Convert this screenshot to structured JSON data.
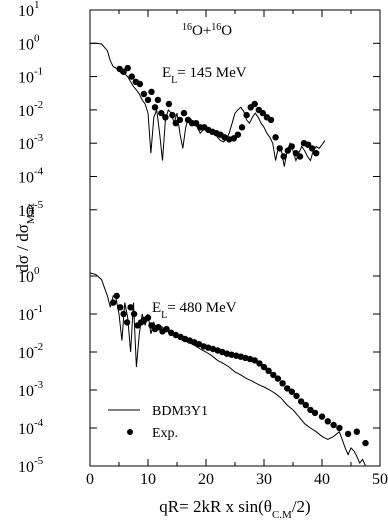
{
  "chart_data": {
    "type": "line",
    "xlabel": "qR= 2kR x sin(θ",
    "xlabel_sub": "C.M",
    "xlabel_end": "/2)",
    "ylabel_pre": "dσ / dσ",
    "ylabel_sub": "Matt",
    "x_axis": {
      "min": 0,
      "max": 50,
      "ticks": [
        0,
        10,
        20,
        30,
        40,
        50
      ]
    },
    "y_axis": {
      "scale": "log",
      "decades_min": -5,
      "decades_max": 1
    },
    "y_ticks_upper": [
      {
        "exp": 1,
        "base": "10",
        "sup": "1"
      },
      {
        "exp": 0,
        "base": "10",
        "sup": "0"
      },
      {
        "exp": -1,
        "base": "10",
        "sup": "-1"
      },
      {
        "exp": -2,
        "base": "10",
        "sup": "-2"
      },
      {
        "exp": -3,
        "base": "10",
        "sup": "-3"
      },
      {
        "exp": -4,
        "base": "10",
        "sup": "-4"
      },
      {
        "exp": -5,
        "base": "10",
        "sup": "-5"
      }
    ],
    "y_ticks_lower": [
      {
        "exp": 0,
        "base": "10",
        "sup": "0"
      },
      {
        "exp": -1,
        "base": "10",
        "sup": "-1"
      },
      {
        "exp": -2,
        "base": "10",
        "sup": "-2"
      },
      {
        "exp": -3,
        "base": "10",
        "sup": "-3"
      },
      {
        "exp": -4,
        "base": "10",
        "sup": "-4"
      },
      {
        "exp": -5,
        "base": "10",
        "sup": "-5"
      }
    ],
    "reaction": {
      "sup1": "16",
      "el1": "O+",
      "sup2": "16",
      "el2": "O"
    },
    "panel_upper_label": {
      "main": "E",
      "sub": "L",
      "rest": "= 145 MeV"
    },
    "panel_lower_label": {
      "main": "E",
      "sub": "L",
      "rest": "= 480 MeV"
    },
    "legend": {
      "position": "bottom-left",
      "line_label": "BDM3Y1",
      "dot_label": "Exp."
    },
    "panels": [
      {
        "name": "145 MeV",
        "theory_x": [
          0,
          1,
          2,
          3,
          3.5,
          4,
          4.5,
          5,
          5.5,
          6,
          6.5,
          7,
          7.5,
          8,
          8.5,
          9,
          9.5,
          10,
          10.5,
          11,
          11.5,
          12,
          12.5,
          13,
          13.5,
          14,
          14.5,
          15,
          15.5,
          16,
          16.5,
          17,
          17.5,
          18,
          18.5,
          19,
          19.5,
          20,
          20.5,
          21,
          21.5,
          22,
          22.5,
          23,
          23.5,
          24,
          24.5,
          25,
          25.5,
          26,
          26.5,
          27,
          27.5,
          28,
          28.5,
          29,
          29.5,
          30,
          30.5,
          31,
          31.5,
          32,
          32.5,
          33,
          33.5,
          34,
          34.5,
          35,
          35.5,
          36,
          36.5,
          37,
          37.5,
          38,
          38.5,
          39,
          39.5,
          40,
          40.5
        ],
        "theory_y": [
          1.0,
          1.0,
          0.95,
          0.6,
          0.3,
          0.2,
          0.18,
          0.15,
          0.12,
          0.12,
          0.1,
          0.07,
          0.05,
          0.04,
          0.03,
          0.02,
          0.015,
          0.008,
          0.0005,
          0.006,
          0.01,
          0.002,
          0.0003,
          0.005,
          0.01,
          0.008,
          0.004,
          0.008,
          0.002,
          0.0007,
          0.003,
          0.006,
          0.005,
          0.004,
          0.003,
          0.002,
          0.0025,
          0.003,
          0.0028,
          0.0025,
          0.002,
          0.0015,
          0.0012,
          0.0011,
          0.0013,
          0.002,
          0.004,
          0.008,
          0.01,
          0.012,
          0.009,
          0.005,
          0.004,
          0.006,
          0.008,
          0.006,
          0.004,
          0.003,
          0.002,
          0.0015,
          0.001,
          0.0003,
          0.0008,
          0.0006,
          0.0002,
          0.0006,
          0.001,
          0.0006,
          0.0003,
          0.0005,
          0.0008,
          0.0006,
          0.0004,
          0.0003,
          0.0006,
          0.0008,
          0.0007,
          0.0009,
          0.0012
        ],
        "exp_x": [
          5.1,
          5.8,
          6.5,
          7.2,
          7.9,
          8.6,
          9.3,
          10.0,
          10.6,
          11.2,
          11.7,
          12.3,
          13.0,
          13.6,
          14.2,
          14.8,
          15.5,
          16.2,
          16.9,
          17.6,
          18.3,
          19.0,
          19.7,
          20.4,
          21.1,
          21.8,
          22.5,
          23.2,
          24.0,
          24.8,
          25.5,
          26.2,
          27.0,
          27.7,
          28.4,
          29.1,
          29.8,
          30.5,
          31.2,
          32.0,
          32.7,
          33.4,
          34.1,
          34.8,
          35.5,
          36.2,
          36.9,
          37.6,
          38.3,
          39.0
        ],
        "exp_y": [
          0.17,
          0.14,
          0.18,
          0.1,
          0.07,
          0.06,
          0.03,
          0.02,
          0.035,
          0.012,
          0.02,
          0.008,
          0.006,
          0.015,
          0.007,
          0.004,
          0.005,
          0.008,
          0.005,
          0.004,
          0.004,
          0.003,
          0.003,
          0.0025,
          0.0022,
          0.002,
          0.0018,
          0.0015,
          0.0013,
          0.0014,
          0.0018,
          0.003,
          0.007,
          0.012,
          0.015,
          0.01,
          0.008,
          0.006,
          0.005,
          0.0015,
          0.0007,
          0.0004,
          0.0006,
          0.0008,
          0.0005,
          0.0004,
          0.001,
          0.0009,
          0.0007,
          0.0005
        ]
      },
      {
        "name": "480 MeV",
        "theory_x": [
          0,
          1,
          2,
          3,
          3.5,
          4,
          4.5,
          5,
          5.5,
          6,
          6.5,
          7,
          7.5,
          8,
          8.5,
          9,
          9.5,
          10,
          10.5,
          11,
          11.5,
          12,
          13,
          14,
          15,
          16,
          17,
          18,
          19,
          20,
          21,
          22,
          23,
          24,
          25,
          26,
          27,
          28,
          29,
          30,
          31,
          32,
          33,
          34,
          35,
          36,
          37,
          38,
          39,
          40,
          41,
          42,
          43,
          44,
          44.5,
          45,
          45.5,
          46,
          46.5,
          47,
          47.5,
          48
        ],
        "theory_y": [
          1.2,
          1.1,
          0.8,
          0.3,
          0.15,
          0.3,
          0.25,
          0.1,
          0.02,
          0.2,
          0.08,
          0.01,
          0.2,
          0.004,
          0.03,
          0.1,
          0.05,
          0.1,
          0.03,
          0.06,
          0.04,
          0.05,
          0.04,
          0.03,
          0.025,
          0.02,
          0.018,
          0.015,
          0.012,
          0.01,
          0.008,
          0.006,
          0.005,
          0.004,
          0.003,
          0.0025,
          0.002,
          0.0017,
          0.0014,
          0.0012,
          0.001,
          0.0008,
          0.0006,
          0.0004,
          0.0003,
          0.0002,
          0.00013,
          0.0001,
          8e-05,
          6e-05,
          5e-05,
          6e-05,
          8e-05,
          3e-05,
          2e-05,
          3e-05,
          2.5e-05,
          1.8e-05,
          1.2e-05,
          1.5e-05,
          1e-05,
          1e-05
        ],
        "exp_x": [
          4.0,
          4.6,
          5.2,
          5.8,
          6.4,
          7.0,
          7.6,
          8.2,
          8.8,
          9.4,
          10.0,
          10.6,
          11.2,
          11.8,
          12.5,
          13.2,
          14.0,
          14.8,
          15.6,
          16.4,
          17.2,
          18.0,
          18.8,
          19.6,
          20.4,
          21.2,
          22.0,
          22.8,
          23.6,
          24.4,
          25.2,
          26.0,
          26.8,
          27.6,
          28.4,
          29.2,
          30.0,
          30.8,
          31.6,
          32.4,
          33.2,
          34.0,
          34.8,
          35.6,
          36.4,
          37.2,
          38.0,
          38.8,
          40.0,
          41.0,
          42.0,
          43.0,
          44.5,
          46.0,
          47.5
        ],
        "exp_y": [
          0.2,
          0.3,
          0.15,
          0.1,
          0.06,
          0.15,
          0.1,
          0.05,
          0.06,
          0.07,
          0.08,
          0.05,
          0.04,
          0.045,
          0.035,
          0.04,
          0.032,
          0.028,
          0.025,
          0.022,
          0.02,
          0.018,
          0.016,
          0.014,
          0.013,
          0.012,
          0.011,
          0.01,
          0.009,
          0.0085,
          0.008,
          0.0075,
          0.007,
          0.0065,
          0.006,
          0.005,
          0.004,
          0.0032,
          0.0025,
          0.002,
          0.0015,
          0.0011,
          0.0009,
          0.0007,
          0.0005,
          0.0004,
          0.0003,
          0.00025,
          0.0002,
          0.00015,
          0.00012,
          0.0001,
          7e-05,
          8e-05,
          4e-05
        ]
      }
    ]
  }
}
